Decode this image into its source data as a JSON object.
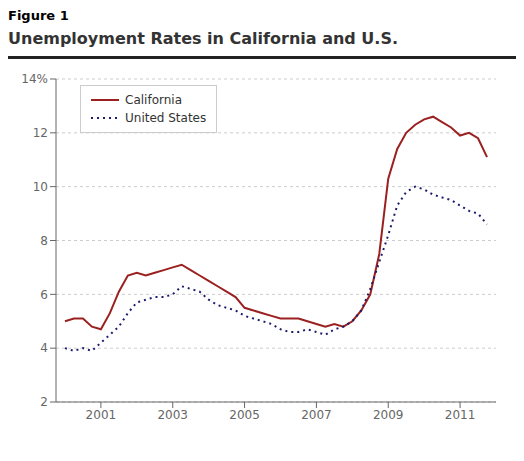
{
  "chart_data": {
    "type": "line",
    "subtitle": "Figure 1",
    "title": "Unemployment Rates in California and U.S.",
    "x": [
      2000.0,
      2000.25,
      2000.5,
      2000.75,
      2001.0,
      2001.25,
      2001.5,
      2001.75,
      2002.0,
      2002.25,
      2002.5,
      2002.75,
      2003.0,
      2003.25,
      2003.5,
      2003.75,
      2004.0,
      2004.25,
      2004.5,
      2004.75,
      2005.0,
      2005.25,
      2005.5,
      2005.75,
      2006.0,
      2006.25,
      2006.5,
      2006.75,
      2007.0,
      2007.25,
      2007.5,
      2007.75,
      2008.0,
      2008.25,
      2008.5,
      2008.75,
      2009.0,
      2009.25,
      2009.5,
      2009.75,
      2010.0,
      2010.25,
      2010.5,
      2010.75,
      2011.0,
      2011.25,
      2011.5,
      2011.75
    ],
    "series": [
      {
        "name": "California",
        "color": "#9B2020",
        "line_style": "solid",
        "values": [
          5.0,
          5.1,
          5.1,
          4.8,
          4.7,
          5.3,
          6.1,
          6.7,
          6.8,
          6.7,
          6.8,
          6.9,
          7.0,
          7.1,
          6.9,
          6.7,
          6.5,
          6.3,
          6.1,
          5.9,
          5.5,
          5.4,
          5.3,
          5.2,
          5.1,
          5.1,
          5.1,
          5.0,
          4.9,
          4.8,
          4.9,
          4.8,
          5.0,
          5.4,
          6.0,
          7.5,
          10.3,
          11.4,
          12.0,
          12.3,
          12.5,
          12.6,
          12.4,
          12.2,
          11.9,
          12.0,
          11.8,
          11.1
        ]
      },
      {
        "name": "United States",
        "color": "#1C1C6E",
        "line_style": "dotted",
        "values": [
          4.0,
          3.9,
          4.0,
          3.9,
          4.2,
          4.5,
          4.8,
          5.3,
          5.7,
          5.8,
          5.9,
          5.9,
          6.0,
          6.3,
          6.2,
          6.1,
          5.8,
          5.6,
          5.5,
          5.4,
          5.2,
          5.1,
          5.0,
          4.9,
          4.7,
          4.6,
          4.6,
          4.7,
          4.6,
          4.5,
          4.7,
          4.8,
          5.0,
          5.4,
          6.2,
          7.2,
          8.2,
          9.3,
          9.8,
          10.0,
          9.9,
          9.7,
          9.6,
          9.5,
          9.3,
          9.1,
          9.0,
          8.6
        ]
      }
    ],
    "xlim": [
      1999.75,
      2012.0
    ],
    "xticks": [
      2001,
      2003,
      2005,
      2007,
      2009,
      2011
    ],
    "ylim": [
      2,
      14
    ],
    "yticks": [
      2,
      4,
      6,
      8,
      10,
      12,
      {
        "value": 14,
        "label": "14%"
      }
    ],
    "grid": "y",
    "legend": "upper left"
  }
}
